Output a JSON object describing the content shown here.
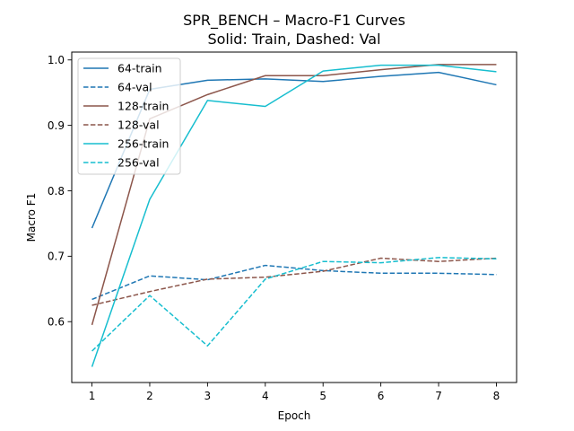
{
  "chart_data": {
    "type": "line",
    "title": "SPR_BENCH – Macro-F1 Curves",
    "subtitle": "Solid: Train, Dashed: Val",
    "xlabel": "Epoch",
    "ylabel": "Macro F1",
    "x": [
      1,
      2,
      3,
      4,
      5,
      6,
      7,
      8
    ],
    "xlim": [
      0.65,
      8.35
    ],
    "ylim": [
      0.507,
      1.012
    ],
    "xticks": [
      1,
      2,
      3,
      4,
      5,
      6,
      7,
      8
    ],
    "yticks": [
      0.6,
      0.7,
      0.8,
      0.9,
      1.0
    ],
    "ytick_labels": [
      "0.6",
      "0.7",
      "0.8",
      "0.9",
      "1.0"
    ],
    "grid": false,
    "legend_position": "top-left",
    "series": [
      {
        "name": "64-train",
        "color": "#1f77b4",
        "dash": "solid",
        "values": [
          0.743,
          0.955,
          0.969,
          0.971,
          0.967,
          0.975,
          0.981,
          0.962
        ]
      },
      {
        "name": "64-val",
        "color": "#1f77b4",
        "dash": "dashed",
        "values": [
          0.634,
          0.67,
          0.664,
          0.686,
          0.678,
          0.674,
          0.674,
          0.672
        ]
      },
      {
        "name": "128-train",
        "color": "#8c564b",
        "dash": "solid",
        "values": [
          0.595,
          0.91,
          0.947,
          0.976,
          0.976,
          0.985,
          0.993,
          0.993
        ]
      },
      {
        "name": "128-val",
        "color": "#8c564b",
        "dash": "dashed",
        "values": [
          0.625,
          0.646,
          0.665,
          0.668,
          0.677,
          0.697,
          0.692,
          0.697
        ]
      },
      {
        "name": "256-train",
        "color": "#17becf",
        "dash": "solid",
        "values": [
          0.531,
          0.787,
          0.938,
          0.929,
          0.983,
          0.992,
          0.992,
          0.982
        ]
      },
      {
        "name": "256-val",
        "color": "#17becf",
        "dash": "dashed",
        "values": [
          0.555,
          0.64,
          0.563,
          0.665,
          0.692,
          0.69,
          0.698,
          0.696
        ]
      }
    ]
  }
}
